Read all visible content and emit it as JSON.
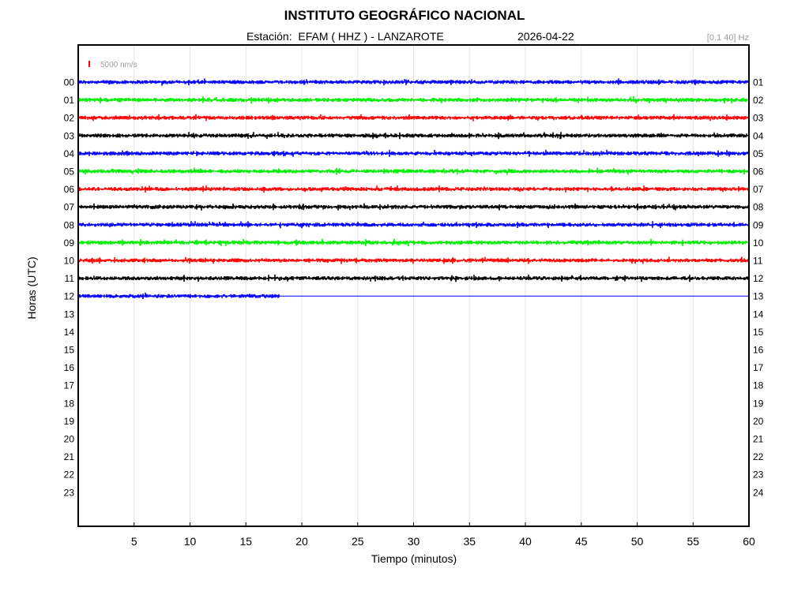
{
  "header": {
    "title": "INSTITUTO GEOGRÁFICO NACIONAL",
    "station_line": "Estación:  EFAM ( HHZ ) - LANZAROTE",
    "date": "2026-04-22",
    "filter": "[0.1 40] Hz"
  },
  "chart_data": {
    "type": "line",
    "xlabel": "Tiempo (minutos)",
    "ylabel": "Horas (UTC)",
    "xlim": [
      0,
      60
    ],
    "x_ticks": [
      5,
      10,
      15,
      20,
      25,
      30,
      35,
      40,
      45,
      50,
      55,
      60
    ],
    "left_hour_labels": [
      "00",
      "01",
      "02",
      "03",
      "04",
      "05",
      "06",
      "07",
      "08",
      "09",
      "10",
      "11",
      "12",
      "13",
      "14",
      "15",
      "16",
      "17",
      "18",
      "19",
      "20",
      "21",
      "22",
      "23"
    ],
    "right_hour_labels": [
      "01",
      "02",
      "03",
      "04",
      "05",
      "06",
      "07",
      "08",
      "09",
      "10",
      "11",
      "12",
      "13",
      "14",
      "15",
      "16",
      "17",
      "18",
      "19",
      "20",
      "21",
      "22",
      "23",
      "24"
    ],
    "scale_bar": {
      "label": "5000 nm/s",
      "color": "#ff0000"
    },
    "grid": "vertical",
    "series_colors": [
      "#0000ff",
      "#00ee00",
      "#ff0000",
      "#000000"
    ],
    "traces": [
      {
        "hour": "00",
        "color": "#0000ff",
        "end_minute": 60
      },
      {
        "hour": "01",
        "color": "#00ee00",
        "end_minute": 60
      },
      {
        "hour": "02",
        "color": "#ff0000",
        "end_minute": 60
      },
      {
        "hour": "03",
        "color": "#000000",
        "end_minute": 60
      },
      {
        "hour": "04",
        "color": "#0000ff",
        "end_minute": 60
      },
      {
        "hour": "05",
        "color": "#00ee00",
        "end_minute": 60
      },
      {
        "hour": "06",
        "color": "#ff0000",
        "end_minute": 60
      },
      {
        "hour": "07",
        "color": "#000000",
        "end_minute": 60
      },
      {
        "hour": "08",
        "color": "#0000ff",
        "end_minute": 60
      },
      {
        "hour": "09",
        "color": "#00ee00",
        "end_minute": 60
      },
      {
        "hour": "10",
        "color": "#ff0000",
        "end_minute": 60
      },
      {
        "hour": "11",
        "color": "#000000",
        "end_minute": 60
      },
      {
        "hour": "12",
        "color": "#0000ff",
        "end_minute": 18
      }
    ]
  }
}
